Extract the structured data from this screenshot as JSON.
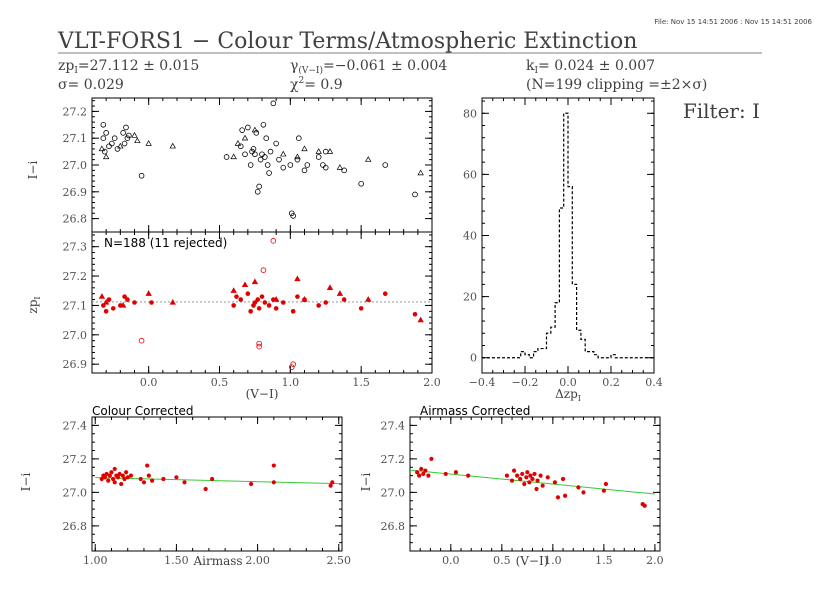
{
  "header": {
    "file_note": "File: Nov 15 14:51 2006 : Nov 15 14:51 2006",
    "title": "VLT-FORS1 − Colour Terms/Atmospheric Extinction",
    "zp": "zp",
    "zp_sub": "I",
    "zp_val": "=27.112 ± 0.015",
    "sigma": "σ=  0.029",
    "gamma": "γ",
    "gamma_sub": "(V−I)",
    "gamma_val": "=−0.061 ± 0.004",
    "chi": "χ",
    "chi_sup": "2",
    "chi_val": "=  0.9",
    "k": "k",
    "k_sub": "I",
    "k_val": "=  0.024 ± 0.007",
    "clip": "(N=199 clipping =±2×σ)",
    "filter": "Filter: I"
  },
  "chart_data": [
    {
      "id": "raw",
      "type": "scatter",
      "ylabel": "I−i",
      "xlim": [
        -0.4,
        2.0
      ],
      "ylim": [
        26.75,
        27.25
      ],
      "yticks": [
        "26.8",
        "26.9",
        "27.0",
        "27.1",
        "27.2"
      ],
      "series": [
        {
          "marker": "circle",
          "points": [
            [
              -0.32,
              27.15
            ],
            [
              -0.32,
              27.1
            ],
            [
              -0.31,
              27.05
            ],
            [
              -0.3,
              27.12
            ],
            [
              -0.28,
              27.07
            ],
            [
              -0.26,
              27.08
            ],
            [
              -0.24,
              27.1
            ],
            [
              -0.22,
              27.06
            ],
            [
              -0.18,
              27.12
            ],
            [
              -0.17,
              27.08
            ],
            [
              -0.16,
              27.14
            ],
            [
              -0.15,
              27.1
            ],
            [
              -0.14,
              27.11
            ],
            [
              -0.05,
              26.96
            ],
            [
              0.55,
              27.03
            ],
            [
              0.65,
              27.07
            ],
            [
              0.66,
              27.13
            ],
            [
              0.68,
              27.04
            ],
            [
              0.7,
              27.14
            ],
            [
              0.72,
              27.0
            ],
            [
              0.73,
              27.05
            ],
            [
              0.74,
              27.06
            ],
            [
              0.75,
              27.04
            ],
            [
              0.76,
              27.12
            ],
            [
              0.77,
              26.9
            ],
            [
              0.78,
              26.92
            ],
            [
              0.79,
              27.02
            ],
            [
              0.8,
              27.04
            ],
            [
              0.81,
              27.15
            ],
            [
              0.82,
              27.03
            ],
            [
              0.83,
              27.1
            ],
            [
              0.84,
              27.0
            ],
            [
              0.85,
              26.97
            ],
            [
              0.86,
              27.05
            ],
            [
              0.88,
              27.23
            ],
            [
              0.9,
              27.08
            ],
            [
              0.92,
              27.02
            ],
            [
              0.95,
              26.99
            ],
            [
              1.0,
              27.0
            ],
            [
              1.01,
              26.82
            ],
            [
              1.02,
              26.81
            ],
            [
              1.05,
              27.02
            ],
            [
              1.06,
              27.1
            ],
            [
              1.1,
              26.98
            ],
            [
              1.12,
              27.0
            ],
            [
              1.2,
              27.03
            ],
            [
              1.23,
              27.0
            ],
            [
              1.25,
              26.99
            ],
            [
              1.25,
              27.05
            ],
            [
              1.38,
              26.98
            ],
            [
              1.5,
              26.93
            ],
            [
              1.67,
              27.0
            ],
            [
              1.88,
              26.89
            ]
          ]
        },
        {
          "marker": "triangle",
          "points": [
            [
              -0.33,
              27.06
            ],
            [
              -0.3,
              27.03
            ],
            [
              -0.2,
              27.07
            ],
            [
              -0.1,
              27.11
            ],
            [
              -0.08,
              27.09
            ],
            [
              0.0,
              27.08
            ],
            [
              0.17,
              27.07
            ],
            [
              0.6,
              27.03
            ],
            [
              0.63,
              27.08
            ],
            [
              0.68,
              27.1
            ],
            [
              0.75,
              27.13
            ],
            [
              0.95,
              27.04
            ],
            [
              1.05,
              27.03
            ],
            [
              1.1,
              27.06
            ],
            [
              1.2,
              27.05
            ],
            [
              1.28,
              27.05
            ],
            [
              1.35,
              26.99
            ],
            [
              1.55,
              27.02
            ],
            [
              1.92,
              26.97
            ]
          ]
        }
      ]
    },
    {
      "id": "zp",
      "type": "scatter",
      "annotation": "N=188 (11 rejected)",
      "ylabel": "zp",
      "ylabel_sub": "I",
      "xlabel": "(V−I)",
      "xlim": [
        -0.4,
        2.0
      ],
      "ylim": [
        26.87,
        27.35
      ],
      "yticks": [
        "26.9",
        "27.0",
        "27.1",
        "27.2",
        "27.3"
      ],
      "xticks": [
        "0.0",
        "0.5",
        "1.0",
        "1.5",
        "2.0"
      ],
      "fit_level": 27.112,
      "series": [
        {
          "marker": "circle",
          "points": [
            [
              -0.32,
              27.1
            ],
            [
              -0.3,
              27.08
            ],
            [
              -0.28,
              27.12
            ],
            [
              -0.25,
              27.09
            ],
            [
              -0.2,
              27.1
            ],
            [
              -0.17,
              27.13
            ],
            [
              -0.15,
              27.12
            ],
            [
              -0.1,
              27.11
            ],
            [
              0.02,
              27.11
            ],
            [
              0.6,
              27.1
            ],
            [
              0.62,
              27.13
            ],
            [
              0.65,
              27.12
            ],
            [
              0.7,
              27.14
            ],
            [
              0.72,
              27.08
            ],
            [
              0.74,
              27.1
            ],
            [
              0.75,
              27.11
            ],
            [
              0.77,
              27.12
            ],
            [
              0.78,
              27.09
            ],
            [
              0.8,
              27.13
            ],
            [
              0.82,
              27.11
            ],
            [
              0.85,
              27.1
            ],
            [
              0.88,
              27.12
            ],
            [
              0.9,
              27.09
            ],
            [
              0.95,
              27.11
            ],
            [
              1.02,
              27.08
            ],
            [
              1.05,
              27.13
            ],
            [
              1.1,
              27.12
            ],
            [
              1.2,
              27.1
            ],
            [
              1.25,
              27.11
            ],
            [
              1.38,
              27.12
            ],
            [
              1.5,
              27.09
            ],
            [
              1.67,
              27.14
            ],
            [
              1.88,
              27.07
            ]
          ]
        },
        {
          "marker": "triangle",
          "points": [
            [
              -0.33,
              27.13
            ],
            [
              -0.3,
              27.11
            ],
            [
              -0.18,
              27.1
            ],
            [
              0.0,
              27.14
            ],
            [
              0.17,
              27.11
            ],
            [
              0.6,
              27.15
            ],
            [
              0.68,
              27.17
            ],
            [
              0.75,
              27.18
            ],
            [
              0.9,
              27.12
            ],
            [
              1.05,
              27.19
            ],
            [
              1.1,
              27.12
            ],
            [
              1.28,
              27.16
            ],
            [
              1.35,
              27.14
            ],
            [
              1.55,
              27.12
            ],
            [
              1.92,
              27.05
            ]
          ]
        },
        {
          "marker": "rejected",
          "points": [
            [
              -0.05,
              26.98
            ],
            [
              0.78,
              26.97
            ],
            [
              0.78,
              26.96
            ],
            [
              0.81,
              27.22
            ],
            [
              0.88,
              27.32
            ],
            [
              1.02,
              26.9
            ],
            [
              1.01,
              26.89
            ]
          ]
        }
      ]
    },
    {
      "id": "hist",
      "type": "bar",
      "xlabel": "Δzp",
      "xlabel_sub": "I",
      "xlim": [
        -0.4,
        0.4
      ],
      "ylim": [
        -5,
        85
      ],
      "xticks": [
        "−0.4",
        "−0.2",
        "0.0",
        "0.2",
        "0.4"
      ],
      "yticks": [
        "0",
        "20",
        "40",
        "60",
        "80"
      ],
      "bin_width": 0.02,
      "bins": [
        [
          -0.4,
          0
        ],
        [
          -0.38,
          0
        ],
        [
          -0.36,
          0
        ],
        [
          -0.34,
          0
        ],
        [
          -0.32,
          0
        ],
        [
          -0.3,
          0
        ],
        [
          -0.28,
          0
        ],
        [
          -0.26,
          0
        ],
        [
          -0.24,
          0
        ],
        [
          -0.22,
          2
        ],
        [
          -0.2,
          1
        ],
        [
          -0.18,
          0
        ],
        [
          -0.16,
          2
        ],
        [
          -0.14,
          3
        ],
        [
          -0.12,
          3
        ],
        [
          -0.1,
          8
        ],
        [
          -0.08,
          10
        ],
        [
          -0.06,
          18
        ],
        [
          -0.04,
          49
        ],
        [
          -0.02,
          80
        ],
        [
          0.0,
          56
        ],
        [
          0.02,
          24
        ],
        [
          0.04,
          9
        ],
        [
          0.06,
          6
        ],
        [
          0.08,
          2
        ],
        [
          0.1,
          2
        ],
        [
          0.12,
          1
        ],
        [
          0.14,
          0
        ],
        [
          0.16,
          0
        ],
        [
          0.18,
          0
        ],
        [
          0.2,
          1
        ],
        [
          0.22,
          0
        ],
        [
          0.24,
          0
        ],
        [
          0.26,
          0
        ],
        [
          0.28,
          0
        ],
        [
          0.3,
          0
        ],
        [
          0.32,
          0
        ],
        [
          0.34,
          0
        ],
        [
          0.36,
          0
        ],
        [
          0.38,
          0
        ]
      ]
    },
    {
      "id": "colour",
      "type": "scatter",
      "title": "Colour Corrected",
      "ylabel": "I−i",
      "xlabel": "Airmass",
      "xlim": [
        0.98,
        2.52
      ],
      "ylim": [
        26.65,
        27.45
      ],
      "yticks": [
        "26.8",
        "27.0",
        "27.2",
        "27.4"
      ],
      "xticks": [
        "1.00",
        "1.50",
        "2.00",
        "2.50"
      ],
      "fit": [
        [
          1.0,
          27.088
        ],
        [
          2.5,
          27.052
        ]
      ],
      "series": [
        {
          "marker": "dot",
          "points": [
            [
              1.04,
              27.08
            ],
            [
              1.05,
              27.1
            ],
            [
              1.06,
              27.09
            ],
            [
              1.07,
              27.11
            ],
            [
              1.08,
              27.07
            ],
            [
              1.09,
              27.1
            ],
            [
              1.1,
              27.12
            ],
            [
              1.11,
              27.08
            ],
            [
              1.12,
              27.06
            ],
            [
              1.12,
              27.14
            ],
            [
              1.13,
              27.1
            ],
            [
              1.14,
              27.09
            ],
            [
              1.15,
              27.11
            ],
            [
              1.16,
              27.05
            ],
            [
              1.17,
              27.1
            ],
            [
              1.18,
              27.08
            ],
            [
              1.19,
              27.12
            ],
            [
              1.2,
              27.09
            ],
            [
              1.22,
              27.1
            ],
            [
              1.28,
              27.08
            ],
            [
              1.3,
              27.06
            ],
            [
              1.32,
              27.16
            ],
            [
              1.33,
              27.1
            ],
            [
              1.35,
              27.07
            ],
            [
              1.42,
              27.08
            ],
            [
              1.5,
              27.09
            ],
            [
              1.55,
              27.06
            ],
            [
              1.68,
              27.02
            ],
            [
              1.72,
              27.08
            ],
            [
              1.96,
              27.05
            ],
            [
              2.1,
              27.06
            ],
            [
              2.1,
              27.16
            ],
            [
              2.45,
              27.04
            ],
            [
              2.46,
              27.06
            ]
          ]
        }
      ]
    },
    {
      "id": "airmass",
      "type": "scatter",
      "title": "Airmass Corrected",
      "ylabel": "I−i",
      "xlabel": "(V−I)",
      "xlim": [
        -0.4,
        2.05
      ],
      "ylim": [
        26.65,
        27.45
      ],
      "yticks": [
        "26.8",
        "27.0",
        "27.2",
        "27.4"
      ],
      "xticks": [
        "0.0",
        "0.5",
        "1.0",
        "1.5",
        "2.0"
      ],
      "fit": [
        [
          -0.4,
          27.133
        ],
        [
          2.0,
          26.99
        ]
      ],
      "series": [
        {
          "marker": "dot",
          "points": [
            [
              -0.33,
              27.12
            ],
            [
              -0.31,
              27.1
            ],
            [
              -0.29,
              27.14
            ],
            [
              -0.27,
              27.11
            ],
            [
              -0.25,
              27.13
            ],
            [
              -0.22,
              27.1
            ],
            [
              -0.19,
              27.2
            ],
            [
              -0.05,
              27.11
            ],
            [
              0.05,
              27.12
            ],
            [
              0.17,
              27.1
            ],
            [
              0.55,
              27.1
            ],
            [
              0.6,
              27.07
            ],
            [
              0.62,
              27.13
            ],
            [
              0.65,
              27.1
            ],
            [
              0.68,
              27.08
            ],
            [
              0.7,
              27.11
            ],
            [
              0.72,
              27.05
            ],
            [
              0.74,
              27.09
            ],
            [
              0.75,
              27.12
            ],
            [
              0.77,
              27.06
            ],
            [
              0.78,
              27.1
            ],
            [
              0.8,
              27.08
            ],
            [
              0.82,
              27.11
            ],
            [
              0.84,
              27.02
            ],
            [
              0.85,
              27.07
            ],
            [
              0.88,
              27.1
            ],
            [
              0.9,
              27.04
            ],
            [
              0.95,
              27.09
            ],
            [
              1.02,
              27.06
            ],
            [
              1.05,
              26.97
            ],
            [
              1.1,
              27.08
            ],
            [
              1.12,
              26.98
            ],
            [
              1.25,
              27.03
            ],
            [
              1.3,
              27.0
            ],
            [
              1.5,
              27.01
            ],
            [
              1.52,
              27.05
            ],
            [
              1.88,
              26.93
            ],
            [
              1.9,
              26.92
            ]
          ]
        }
      ]
    }
  ]
}
